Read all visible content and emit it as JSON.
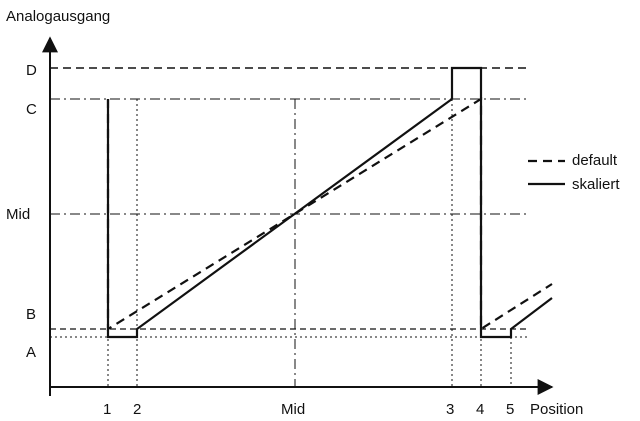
{
  "axes": {
    "y_label": "Analogausgang",
    "x_label": "Position",
    "y_ticks": [
      "D",
      "C",
      "Mid",
      "B",
      "A"
    ],
    "x_ticks": [
      "1",
      "2",
      "Mid",
      "3",
      "4",
      "5"
    ]
  },
  "legend": {
    "default_label": "default",
    "scaled_label": "skaliert"
  }
}
